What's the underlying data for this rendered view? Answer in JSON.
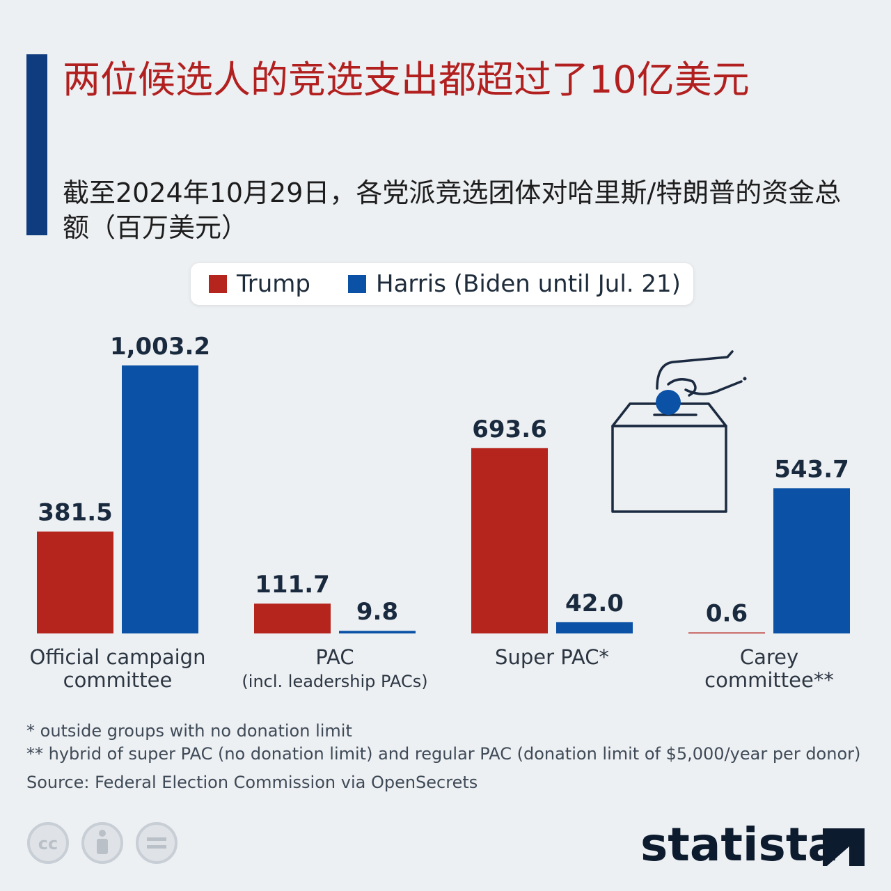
{
  "header": {
    "title": "两位候选人的竞选支出都超过了10亿美元",
    "subtitle": "截至2024年10月29日，各党派竞选团体对哈里斯/特朗普的资金总额（百万美元）"
  },
  "legend": {
    "items": [
      {
        "label": "Trump",
        "color": "#b5241d"
      },
      {
        "label": "Harris (Biden until Jul. 21)",
        "color": "#0b51a6"
      }
    ]
  },
  "chart_data": {
    "type": "bar",
    "title": "两位候选人的竞选支出都超过了10亿美元",
    "subtitle": "截至2024年10月29日，各党派竞选团体对哈里斯/特朗普的资金总额（百万美元）",
    "categories": [
      [
        "Official campaign",
        "committee"
      ],
      [
        "PAC",
        "(incl. leadership PACs)"
      ],
      [
        "Super PAC*"
      ],
      [
        "Carey",
        "committee**"
      ]
    ],
    "series": [
      {
        "name": "Trump",
        "values": [
          381.5,
          111.7,
          693.6,
          0.6
        ],
        "labels": [
          "381.5",
          "111.7",
          "693.6",
          "0.6"
        ],
        "color": "#b5241d"
      },
      {
        "name": "Harris (Biden until Jul. 21)",
        "values": [
          1003.2,
          9.8,
          42.0,
          543.7
        ],
        "labels": [
          "1,003.2",
          "9.8",
          "42.0",
          "543.7"
        ],
        "color": "#0b51a6"
      }
    ],
    "ylim": [
      0,
      1003.2
    ],
    "grid": false,
    "legend_position": "top-center",
    "value_label_color": "#1a2a3e",
    "axis_label_color": "#2c3642"
  },
  "footnotes": {
    "note1": "*   outside groups with no donation limit",
    "note2": "** hybrid of super PAC (no donation limit) and regular PAC (donation limit of $5,000/year per donor)",
    "source": "Source: Federal Election Commission via OpenSecrets"
  },
  "branding": {
    "logo_text": "statista",
    "cc_icons": [
      "creative-commons-icon",
      "attribution-icon",
      "no-derivatives-icon"
    ]
  }
}
